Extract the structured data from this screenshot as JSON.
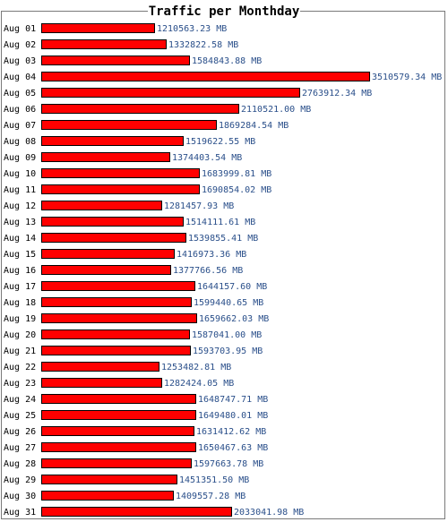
{
  "chart_data": {
    "type": "bar",
    "orientation": "horizontal",
    "title": "Traffic per Monthday",
    "unit": "MB",
    "categories": [
      "Aug 01",
      "Aug 02",
      "Aug 03",
      "Aug 04",
      "Aug 05",
      "Aug 06",
      "Aug 07",
      "Aug 08",
      "Aug 09",
      "Aug 10",
      "Aug 11",
      "Aug 12",
      "Aug 13",
      "Aug 14",
      "Aug 15",
      "Aug 16",
      "Aug 17",
      "Aug 18",
      "Aug 19",
      "Aug 20",
      "Aug 21",
      "Aug 22",
      "Aug 23",
      "Aug 24",
      "Aug 25",
      "Aug 26",
      "Aug 27",
      "Aug 28",
      "Aug 29",
      "Aug 30",
      "Aug 31"
    ],
    "values": [
      1210563.23,
      1332822.58,
      1584843.88,
      3510579.34,
      2763912.34,
      2110521.0,
      1869284.54,
      1519622.55,
      1374403.54,
      1683999.81,
      1690854.02,
      1281457.93,
      1514111.61,
      1539855.41,
      1416973.36,
      1377766.56,
      1644157.6,
      1599440.65,
      1659662.03,
      1587041.0,
      1593703.95,
      1253482.81,
      1282424.05,
      1648747.71,
      1649480.01,
      1631412.62,
      1650467.63,
      1597663.78,
      1451351.5,
      1409557.28,
      2033041.98
    ],
    "value_labels": [
      "1210563.23 MB",
      "1332822.58 MB",
      "1584843.88 MB",
      "3510579.34 MB",
      "2763912.34 MB",
      "2110521.00 MB",
      "1869284.54 MB",
      "1519622.55 MB",
      "1374403.54 MB",
      "1683999.81 MB",
      "1690854.02 MB",
      "1281457.93 MB",
      "1514111.61 MB",
      "1539855.41 MB",
      "1416973.36 MB",
      "1377766.56 MB",
      "1644157.60 MB",
      "1599440.65 MB",
      "1659662.03 MB",
      "1587041.00 MB",
      "1593703.95 MB",
      "1253482.81 MB",
      "1282424.05 MB",
      "1648747.71 MB",
      "1649480.01 MB",
      "1631412.62 MB",
      "1650467.63 MB",
      "1597663.78 MB",
      "1451351.50 MB",
      "1409557.28 MB",
      "2033041.98 MB"
    ],
    "xlim": [
      0,
      3510579.34
    ],
    "grid": false,
    "colors": {
      "bar_fill": "#ff0000",
      "bar_stroke": "#000000",
      "value_text": "#2a4f8a",
      "frame": "#7a7a7a"
    }
  }
}
